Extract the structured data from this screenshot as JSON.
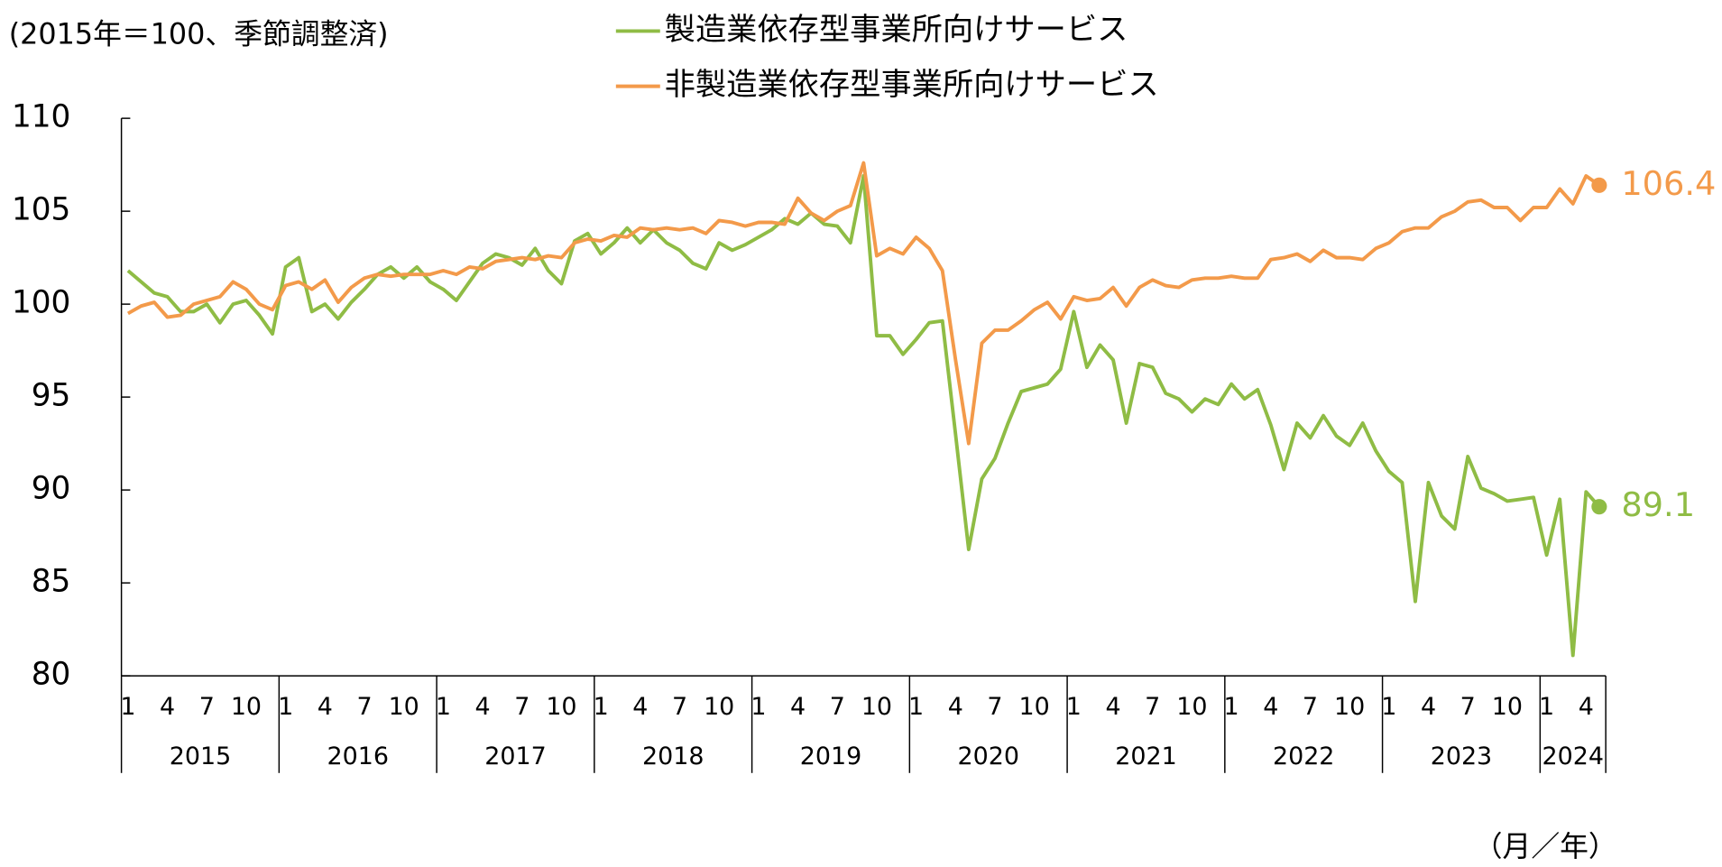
{
  "chart_data": {
    "type": "line",
    "y_label": "(2015年＝100、季節調整済)",
    "x_label": "（月／年）",
    "ylim": [
      80,
      110
    ],
    "yticks": [
      80,
      85,
      90,
      95,
      100,
      105,
      110
    ],
    "categories": [
      "1",
      null,
      null,
      "4",
      null,
      null,
      "7",
      null,
      null,
      "10",
      null,
      null,
      "1",
      null,
      null,
      "4",
      null,
      null,
      "7",
      null,
      null,
      "10",
      null,
      null,
      "1",
      null,
      null,
      "4",
      null,
      null,
      "7",
      null,
      null,
      "10",
      null,
      null,
      "1",
      null,
      null,
      "4",
      null,
      null,
      "7",
      null,
      null,
      "10",
      null,
      null,
      "1",
      null,
      null,
      "4",
      null,
      null,
      "7",
      null,
      null,
      "10",
      null,
      null,
      "1",
      null,
      null,
      "4",
      null,
      null,
      "7",
      null,
      null,
      "10",
      null,
      null,
      "1",
      null,
      null,
      "4",
      null,
      null,
      "7",
      null,
      null,
      "10",
      null,
      null,
      "1",
      null,
      null,
      "4",
      null,
      null,
      "7",
      null,
      null,
      "10",
      null,
      null,
      "1",
      null,
      null,
      "4",
      null,
      null,
      "7",
      null,
      null,
      "10",
      null,
      null,
      "1",
      null,
      null,
      "4",
      null
    ],
    "years": [
      "2015",
      "2016",
      "2017",
      "2018",
      "2019",
      "2020",
      "2021",
      "2022",
      "2023",
      "2024"
    ],
    "series": [
      {
        "name": "製造業依存型事業所向けサービス",
        "color": "#8fbc45",
        "values": [
          101.8,
          101.2,
          100.6,
          100.4,
          99.6,
          99.6,
          100.0,
          99.0,
          100.0,
          100.2,
          99.4,
          98.4,
          102.0,
          102.5,
          99.6,
          100.0,
          99.2,
          100.1,
          100.8,
          101.6,
          102.0,
          101.4,
          102.0,
          101.2,
          100.8,
          100.2,
          101.2,
          102.2,
          102.7,
          102.5,
          102.1,
          103.0,
          101.8,
          101.1,
          103.4,
          103.8,
          102.7,
          103.3,
          104.1,
          103.3,
          104.0,
          103.3,
          102.9,
          102.2,
          101.9,
          103.3,
          102.9,
          103.2,
          103.6,
          104.0,
          104.6,
          104.3,
          104.9,
          104.3,
          104.2,
          103.3,
          106.9,
          98.3,
          98.3,
          97.3,
          98.1,
          99.0,
          99.1,
          93.0,
          86.8,
          90.6,
          91.7,
          93.6,
          95.3,
          95.5,
          95.7,
          96.5,
          99.6,
          96.6,
          97.8,
          97.0,
          93.6,
          96.8,
          96.6,
          95.2,
          94.9,
          94.2,
          94.9,
          94.6,
          95.7,
          94.9,
          95.4,
          93.5,
          91.1,
          93.6,
          92.8,
          94.0,
          92.9,
          92.4,
          93.6,
          92.1,
          91.0,
          90.4,
          84.0,
          90.4,
          88.6,
          87.9,
          91.8,
          90.1,
          89.8,
          89.4,
          89.5,
          89.6,
          86.5,
          89.5,
          81.1,
          89.9,
          89.1
        ]
      },
      {
        "name": "非製造業依存型事業所向けサービス",
        "color": "#f39a4a",
        "values": [
          99.5,
          99.9,
          100.1,
          99.3,
          99.4,
          100.0,
          100.2,
          100.4,
          101.2,
          100.8,
          100.0,
          99.7,
          101.0,
          101.2,
          100.8,
          101.3,
          100.1,
          100.9,
          101.4,
          101.6,
          101.5,
          101.6,
          101.6,
          101.6,
          101.8,
          101.6,
          102.0,
          101.9,
          102.3,
          102.4,
          102.5,
          102.4,
          102.6,
          102.5,
          103.3,
          103.5,
          103.4,
          103.7,
          103.6,
          104.1,
          104.0,
          104.1,
          104.0,
          104.1,
          103.8,
          104.5,
          104.4,
          104.2,
          104.4,
          104.4,
          104.3,
          105.7,
          104.9,
          104.5,
          105.0,
          105.3,
          107.6,
          102.6,
          103.0,
          102.7,
          103.6,
          103.0,
          101.8,
          97.0,
          92.5,
          97.9,
          98.6,
          98.6,
          99.1,
          99.7,
          100.1,
          99.2,
          100.4,
          100.2,
          100.3,
          100.9,
          99.9,
          100.9,
          101.3,
          101.0,
          100.9,
          101.3,
          101.4,
          101.4,
          101.5,
          101.4,
          101.4,
          102.4,
          102.5,
          102.7,
          102.3,
          102.9,
          102.5,
          102.5,
          102.4,
          103.0,
          103.3,
          103.9,
          104.1,
          104.1,
          104.7,
          105.0,
          105.5,
          105.6,
          105.2,
          105.2,
          104.5,
          105.2,
          105.2,
          106.2,
          105.4,
          106.9,
          106.4
        ]
      }
    ]
  }
}
